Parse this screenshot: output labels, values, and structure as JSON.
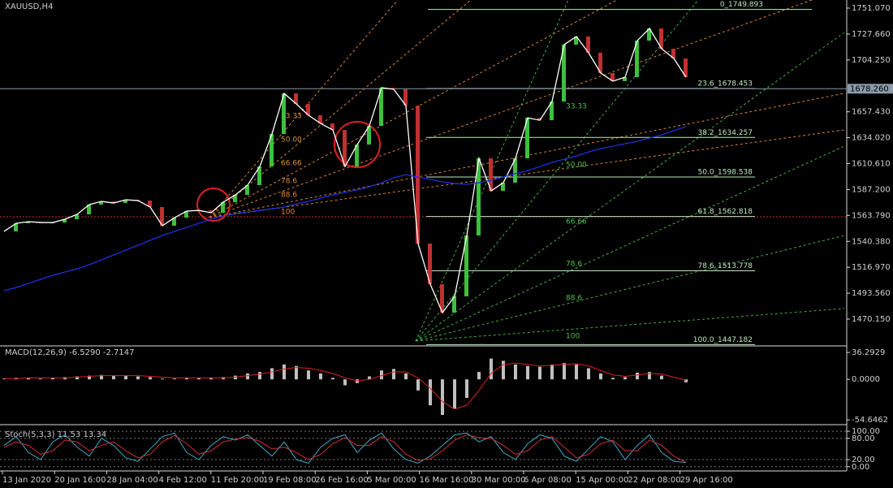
{
  "x_axis_labels": [
    "13 Jan 2020",
    "20 Jan 16:00",
    "28 Jan 04:00",
    "4 Feb 12:00",
    "11 Feb 20:00",
    "19 Feb 08:00",
    "26 Feb 16:00",
    "5 Mar 00:00",
    "16 Mar 16:00",
    "30 Mar 00:00",
    "6 Apr 08:00",
    "15 Apr 00:00",
    "22 Apr 08:00",
    "29 Apr 16:00"
  ],
  "chart_data": [
    {
      "type": "line",
      "title": "XAUUSD,H4",
      "ylim": [
        1446.7,
        1758.4
      ],
      "yticks": [
        {
          "value": 1751.07,
          "label": "1751.070"
        },
        {
          "value": 1727.66,
          "label": "1727.660"
        },
        {
          "value": 1704.25,
          "label": "1704.250"
        },
        {
          "value": 1657.43,
          "label": "1657.430"
        },
        {
          "value": 1634.02,
          "label": "1634.020"
        },
        {
          "value": 1610.61,
          "label": "1610.610"
        },
        {
          "value": 1587.2,
          "label": "1587.200"
        },
        {
          "value": 1563.79,
          "label": "1563.790"
        },
        {
          "value": 1540.38,
          "label": "1540.380"
        },
        {
          "value": 1516.97,
          "label": "1516.970"
        },
        {
          "value": 1493.56,
          "label": "1493.560"
        },
        {
          "value": 1470.15,
          "label": "1470.150"
        }
      ],
      "current_price": {
        "value": 1678.26,
        "label": "1678.260"
      },
      "levels": [
        {
          "value": 1749.893,
          "label": "0_1749.893"
        },
        {
          "value": 1678.453,
          "label": "23.6_1678.453"
        },
        {
          "value": 1634.257,
          "label": "38.2_1634.257"
        },
        {
          "value": 1598.538,
          "label": "50.0_1598.538"
        },
        {
          "value": 1562.818,
          "label": "61.8_1562.818"
        },
        {
          "value": 1513.778,
          "label": "78.6_1513.778"
        },
        {
          "value": 1447.182,
          "label": "100.0_1447.182"
        }
      ],
      "fan_labels": [
        "33.33",
        "50.00",
        "66.66",
        "78.6",
        "88.6",
        "100"
      ],
      "fan_labels_2": [
        "33.33",
        "50.00",
        "66.66",
        "78.6",
        "88.6",
        "100"
      ],
      "series": [
        {
          "color": "#ffffff",
          "values": [
            1549.4,
            1556.7,
            1558.2,
            1557.4,
            1557.4,
            1560.4,
            1564.8,
            1573.6,
            1576.5,
            1575.0,
            1578.0,
            1577.2,
            1571.4,
            1554.5,
            1561.8,
            1567.7,
            1568.4,
            1566.2,
            1575.8,
            1582.4,
            1591.2,
            1608.0,
            1637.4,
            1674.0,
            1664.5,
            1654.3,
            1646.9,
            1641.0,
            1608.0,
            1627.8,
            1644.7,
            1679.2,
            1677.7,
            1663.0,
            1538.4,
            1501.7,
            1476.0,
            1490.7,
            1545.7,
            1615.4,
            1586.0,
            1593.4,
            1615.4,
            1652.0,
            1649.8,
            1666.7,
            1718.1,
            1725.4,
            1710.7,
            1692.4,
            1685.1,
            1688.7,
            1721.7,
            1732.7,
            1714.4,
            1705.6,
            1688.7
          ]
        },
        {
          "color": "#1f2fe0",
          "values": [
            1495.8,
            1498.7,
            1502.4,
            1506.1,
            1509.7,
            1512.7,
            1515.6,
            1519.3,
            1523.7,
            1528.1,
            1532.5,
            1536.9,
            1541.3,
            1545.7,
            1549.4,
            1553.0,
            1556.7,
            1560.4,
            1563.3,
            1565.5,
            1567.0,
            1568.4,
            1569.9,
            1571.4,
            1574.3,
            1576.5,
            1579.4,
            1582.4,
            1584.6,
            1586.8,
            1589.7,
            1593.4,
            1597.8,
            1600.7,
            1598.5,
            1596.3,
            1594.1,
            1592.6,
            1591.9,
            1593.4,
            1595.6,
            1598.5,
            1601.5,
            1604.4,
            1608.0,
            1611.7,
            1614.6,
            1617.6,
            1621.2,
            1624.2,
            1626.4,
            1628.6,
            1630.8,
            1633.7,
            1636.6,
            1640.3,
            1644.0
          ]
        }
      ]
    },
    {
      "type": "bar",
      "title": "MACD(12,26,9) -6.5290 -2.7147",
      "ylim": [
        -60,
        44
      ],
      "yticks": [
        {
          "value": 36.2929,
          "label": "36.2929"
        },
        {
          "value": 0,
          "label": "0.0000"
        },
        {
          "value": -54.6462,
          "label": "-54.6462"
        }
      ],
      "series": [
        {
          "color": "#c0c0c0",
          "values": [
            1,
            2,
            2,
            1,
            2,
            3,
            4,
            5,
            6,
            5,
            5,
            4,
            3,
            1,
            1,
            2,
            2,
            2,
            3,
            5,
            8,
            10,
            15,
            20,
            18,
            12,
            8,
            2,
            -8,
            -5,
            4,
            12,
            14,
            8,
            -15,
            -35,
            -48,
            -40,
            -25,
            10,
            28,
            25,
            20,
            18,
            17,
            20,
            22,
            20,
            15,
            8,
            2,
            3,
            9,
            10,
            5,
            0,
            -4
          ]
        },
        {
          "color": "#e02020",
          "values": [
            1,
            1,
            2,
            2,
            2,
            2,
            3,
            4,
            5,
            5,
            5,
            5,
            4,
            3,
            2,
            2,
            2,
            2,
            2,
            3,
            5,
            7,
            10,
            14,
            16,
            15,
            12,
            8,
            2,
            -2,
            0,
            5,
            10,
            10,
            2,
            -12,
            -30,
            -40,
            -35,
            -15,
            8,
            20,
            22,
            20,
            18,
            19,
            20,
            21,
            18,
            12,
            6,
            4,
            6,
            8,
            7,
            3,
            -1
          ]
        }
      ]
    },
    {
      "type": "line",
      "title": "Stoch(5,3,3) 11.53 13.34",
      "ylim": [
        -12,
        114
      ],
      "yticks": [
        {
          "value": 100,
          "label": "100.00"
        },
        {
          "value": 80,
          "label": "80.00"
        },
        {
          "value": 20,
          "label": "20.00"
        },
        {
          "value": 0,
          "label": "0.00"
        }
      ],
      "series": [
        {
          "color": "#3fa9c9",
          "values": [
            60,
            85,
            40,
            20,
            70,
            90,
            55,
            30,
            80,
            60,
            25,
            15,
            50,
            85,
            95,
            40,
            20,
            60,
            85,
            75,
            90,
            60,
            30,
            70,
            20,
            10,
            55,
            80,
            90,
            40,
            75,
            95,
            50,
            20,
            10,
            30,
            60,
            90,
            95,
            70,
            85,
            40,
            20,
            65,
            90,
            80,
            30,
            15,
            50,
            85,
            70,
            20,
            60,
            90,
            40,
            15,
            12
          ]
        },
        {
          "color": "#d03030",
          "values": [
            55,
            70,
            60,
            35,
            45,
            75,
            70,
            45,
            60,
            70,
            45,
            25,
            35,
            70,
            88,
            65,
            35,
            45,
            70,
            78,
            82,
            72,
            50,
            55,
            40,
            20,
            35,
            65,
            82,
            60,
            60,
            85,
            70,
            35,
            18,
            22,
            45,
            75,
            90,
            82,
            80,
            60,
            35,
            45,
            75,
            85,
            55,
            25,
            35,
            65,
            75,
            45,
            45,
            75,
            60,
            30,
            13
          ]
        }
      ]
    }
  ]
}
